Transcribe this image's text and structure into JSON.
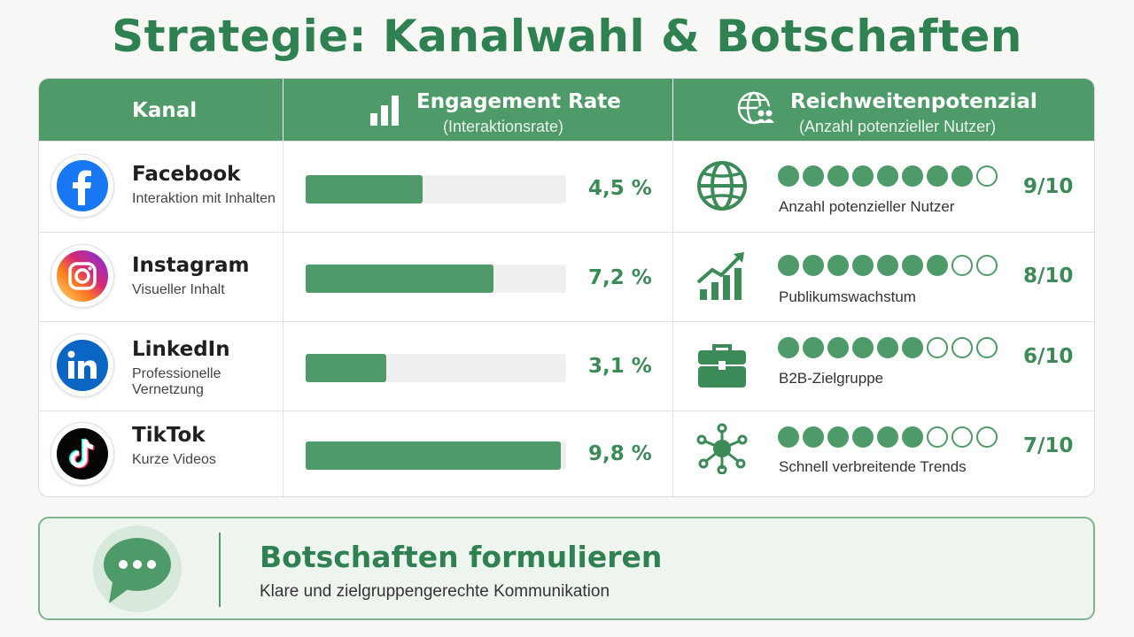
{
  "title": "Strategie: Kanalwahl & Botschaften",
  "colors": {
    "accent": "#4f9a69",
    "title": "#2f8151",
    "track": "#efefef"
  },
  "table": {
    "headers": {
      "channel": "Kanal",
      "engagement": {
        "title": "Engagement Rate",
        "subtitle": "(Interaktionsrate)",
        "icon": "bar-chart-icon"
      },
      "reach": {
        "title": "Reichweitenpotenzial",
        "subtitle": "(Anzahl potenzieller Nutzer)",
        "icon": "globe-users-icon"
      }
    },
    "rows": [
      {
        "name": "Facebook",
        "subtitle": "Interaktion mit Inhalten",
        "logo": "facebook-icon",
        "rate_value": 4.5,
        "rate_label": "4,5 %",
        "reach_icon": "globe-icon",
        "reach_filled": 8,
        "reach_total": 9,
        "reach_label": "Anzahl potenzieller Nutzer",
        "score": "9/10"
      },
      {
        "name": "Instagram",
        "subtitle": "Visueller Inhalt",
        "logo": "instagram-icon",
        "rate_value": 7.2,
        "rate_label": "7,2 %",
        "reach_icon": "growth-chart-icon",
        "reach_filled": 7,
        "reach_total": 9,
        "reach_label": "Publikumswachstum",
        "score": "8/10"
      },
      {
        "name": "LinkedIn",
        "subtitle": "Professionelle Vernetzung",
        "logo": "linkedin-icon",
        "rate_value": 3.1,
        "rate_label": "3,1 %",
        "reach_icon": "briefcase-icon",
        "reach_filled": 6,
        "reach_total": 9,
        "reach_label": "B2B-Zielgruppe",
        "score": "6/10"
      },
      {
        "name": "TikTok",
        "subtitle": "Kurze Videos",
        "logo": "tiktok-icon",
        "rate_value": 9.8,
        "rate_label": "9,8 %",
        "reach_icon": "network-icon",
        "reach_filled": 6,
        "reach_total": 9,
        "reach_label": "Schnell verbreitende Trends",
        "score": "7/10"
      }
    ],
    "rate_max": 10
  },
  "message": {
    "title": "Botschaften formulieren",
    "subtitle": "Klare und zielgruppengerechte Kommunikation",
    "icon": "chat-bubble-icon"
  }
}
